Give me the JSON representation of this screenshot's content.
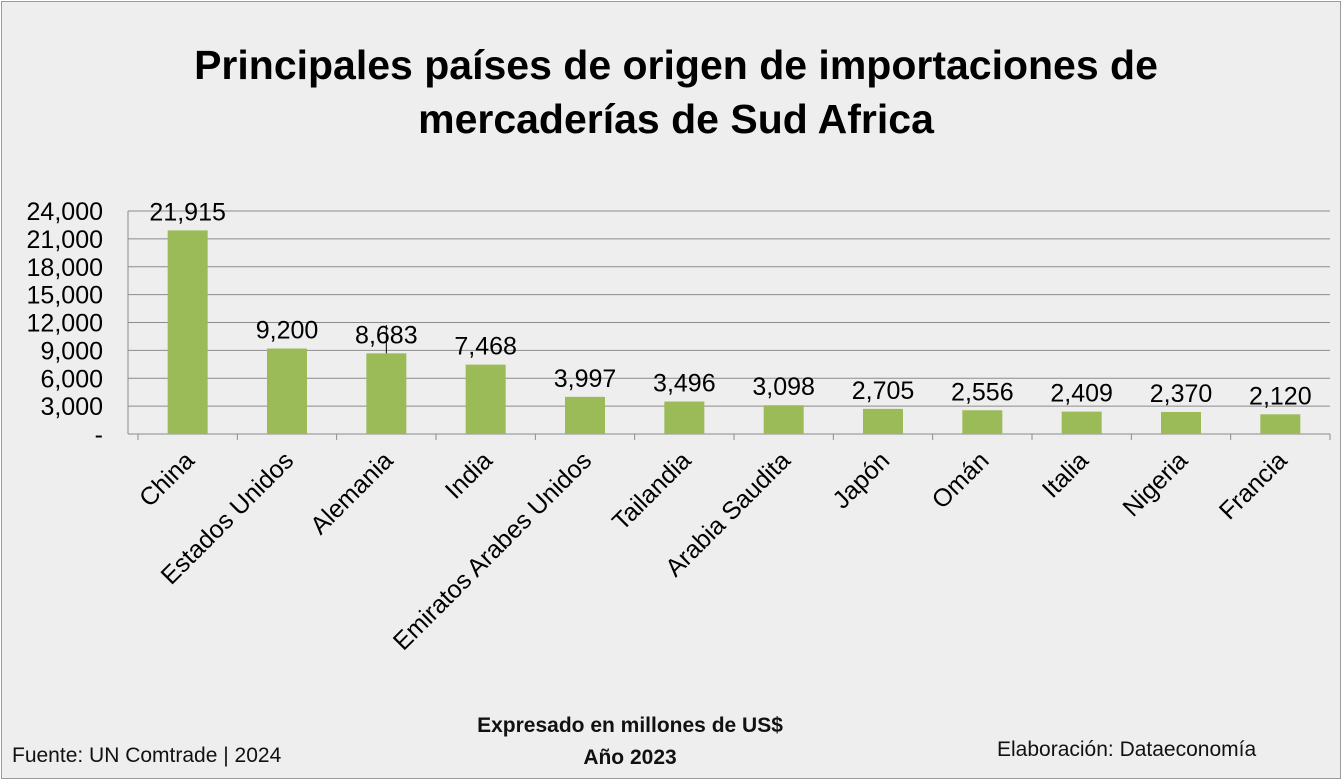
{
  "title_line1": "Principales países de origen de importaciones de",
  "title_line2": "mercaderías de Sud Africa",
  "chart_data": {
    "type": "bar",
    "title": "Principales países de origen de importaciones de mercaderías de Sud Africa",
    "categories": [
      "China",
      "Estados Unidos",
      "Alemania",
      "India",
      "Emiratos Arabes Unidos",
      "Tailandia",
      "Arabia Saudita",
      "Japón",
      "Omán",
      "Italia",
      "Nigeria",
      "Francia"
    ],
    "values": [
      21915,
      9200,
      8683,
      7468,
      3997,
      3496,
      3098,
      2705,
      2556,
      2409,
      2370,
      2120
    ],
    "value_labels": [
      "21,915",
      "9,200",
      "8,683",
      "7,468",
      "3,997",
      "3,496",
      "3,098",
      "2,705",
      "2,556",
      "2,409",
      "2,370",
      "2,120"
    ],
    "ylim": [
      0,
      24000
    ],
    "yticks": [
      0,
      3000,
      6000,
      9000,
      12000,
      15000,
      18000,
      21000,
      24000
    ],
    "ytick_labels": [
      "-",
      "3,000",
      "6,000",
      "9,000",
      "12,000",
      "15,000",
      "18,000",
      "21,000",
      "24,000"
    ],
    "grid": true,
    "legend": "none",
    "bar_color": "#9bbb59",
    "xlabel": "",
    "ylabel": ""
  },
  "note_line1": "Expresado en millones de US$",
  "note_line2": "Año 2023",
  "source": "Fuente: UN Comtrade | 2024",
  "credit": "Elaboración: Dataeconomía"
}
